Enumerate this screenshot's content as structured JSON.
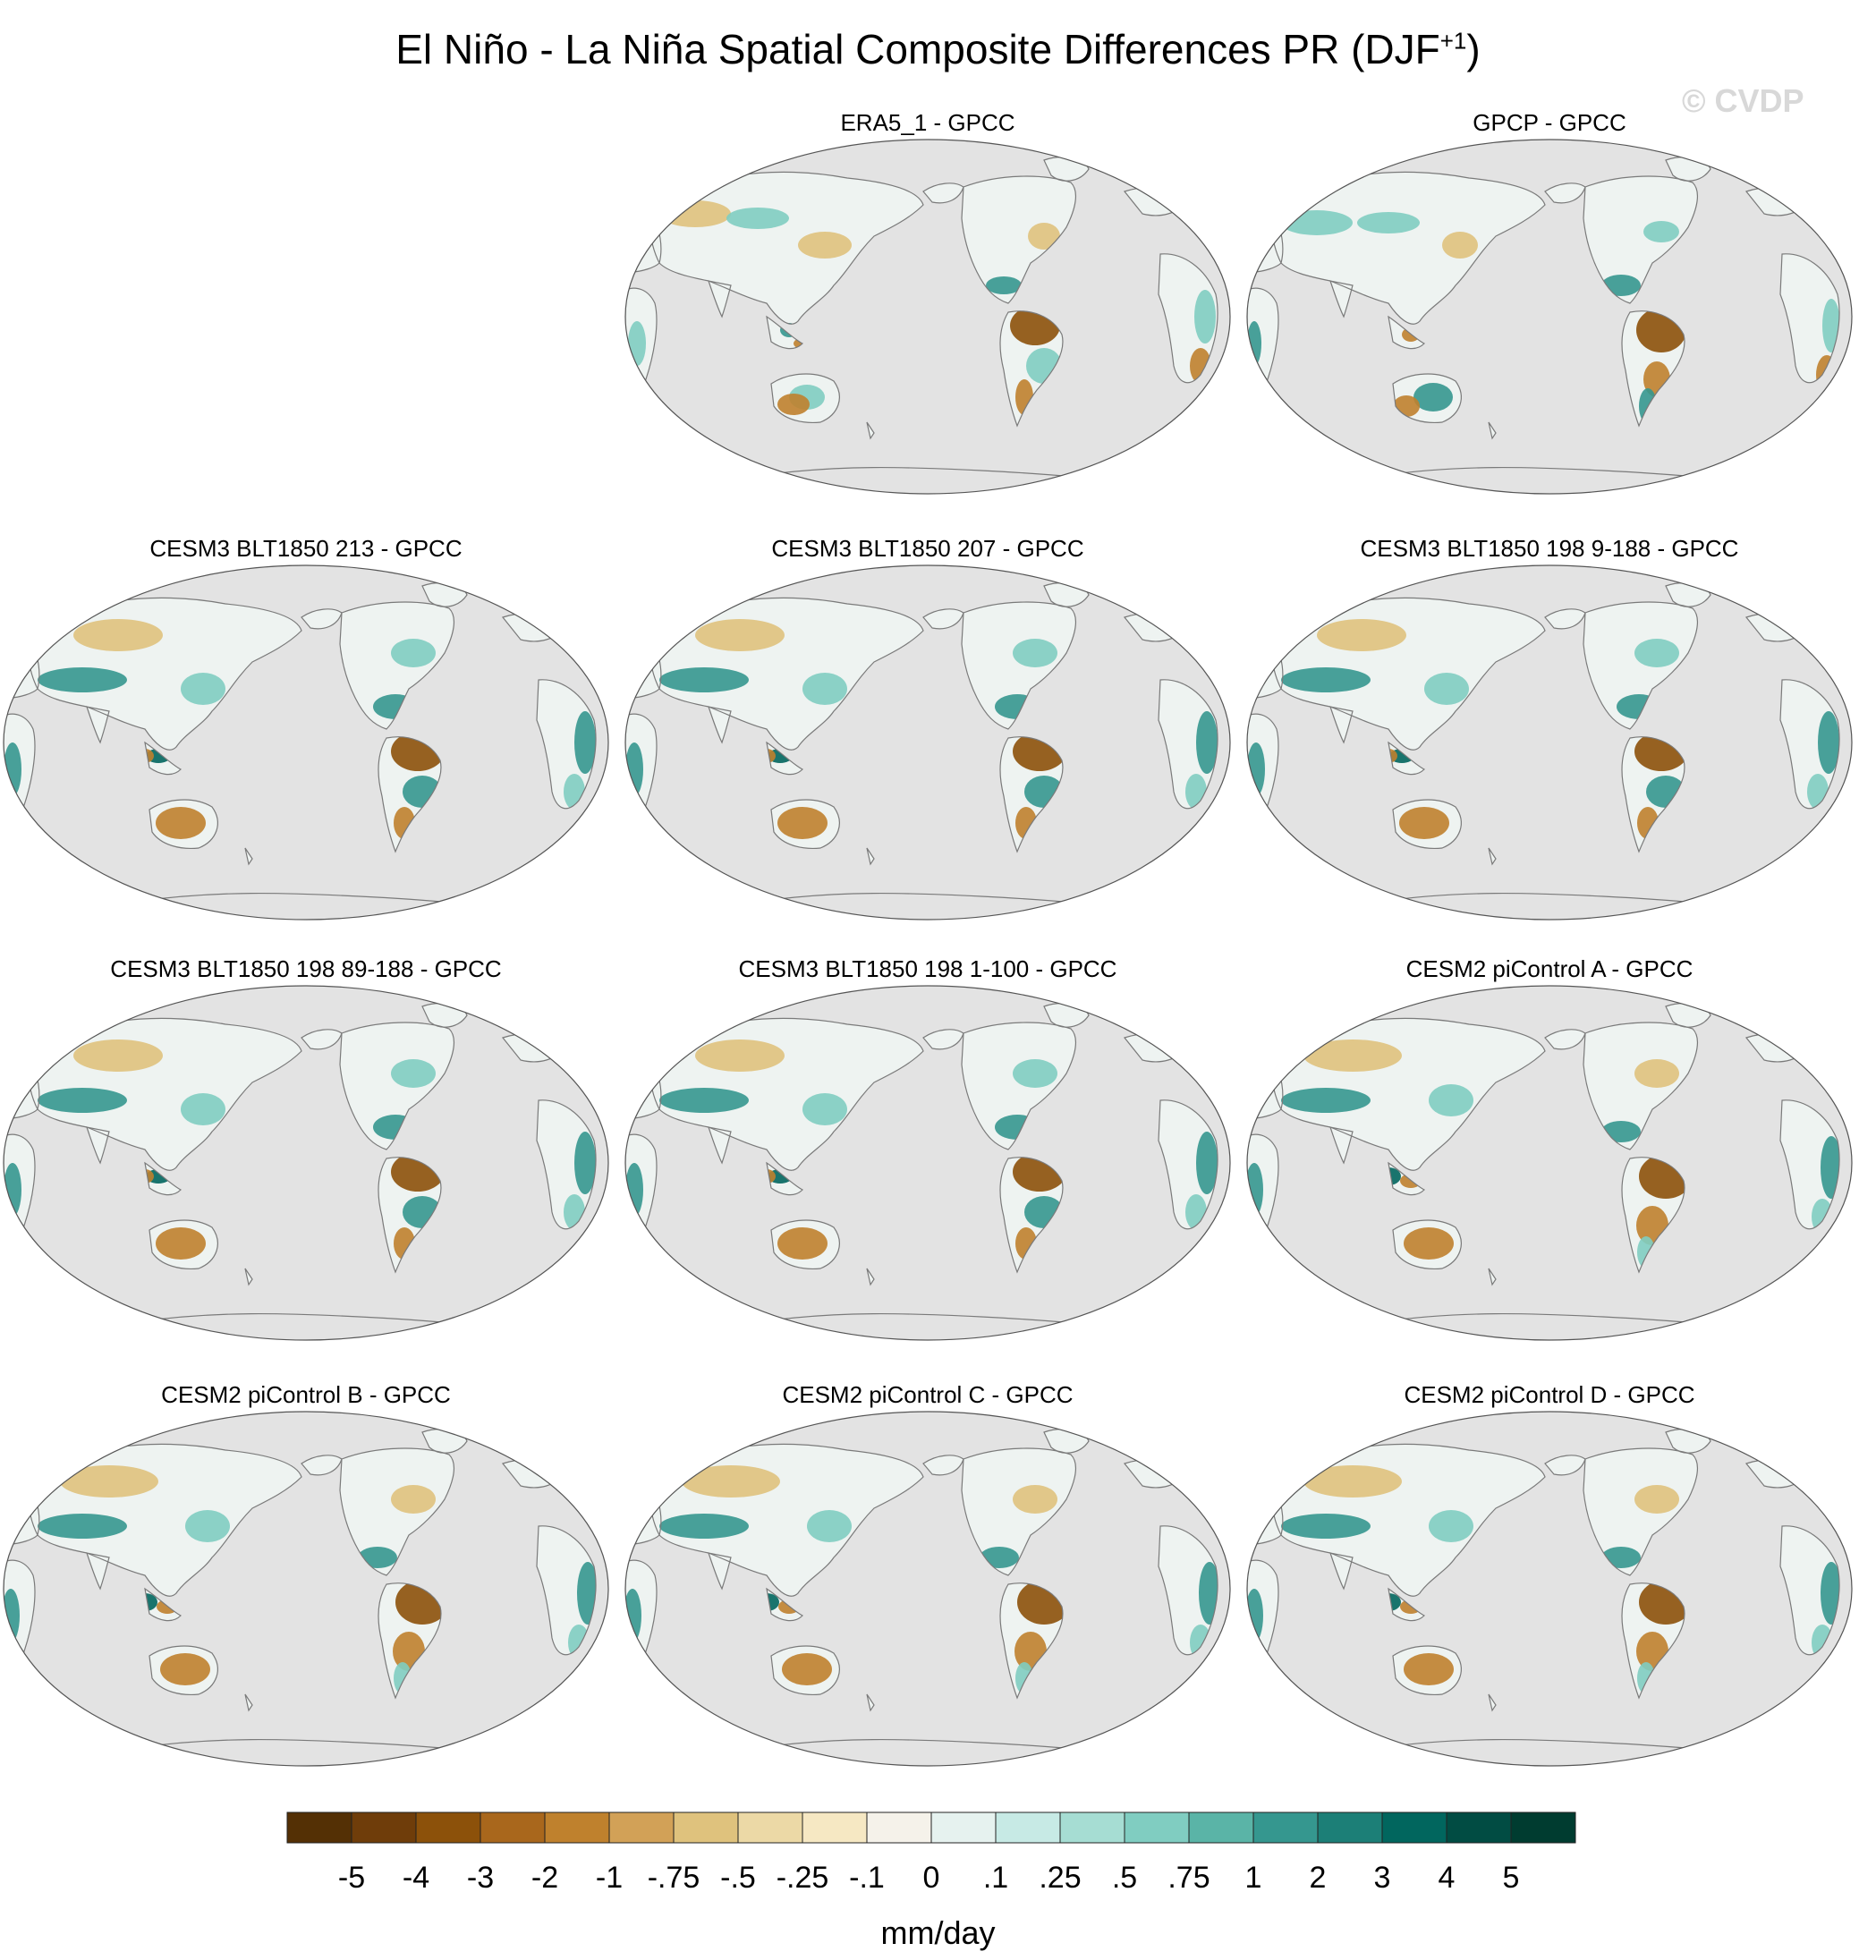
{
  "figure": {
    "title": "El Niño - La Niña Spatial Composite Differences PR (DJF",
    "title_sup": "+1",
    "title_close": ")",
    "watermark": "© CVDP"
  },
  "panels": [
    {
      "title": "ERA5_1 - GPCC",
      "pattern": "obs1"
    },
    {
      "title": "GPCP - GPCC",
      "pattern": "obs2"
    },
    {
      "title": "CESM3 BLT1850 213 - GPCC",
      "pattern": "model"
    },
    {
      "title": "CESM3 BLT1850 207 - GPCC",
      "pattern": "model"
    },
    {
      "title": "CESM3 BLT1850 198 9-188 - GPCC",
      "pattern": "model"
    },
    {
      "title": "CESM3 BLT1850 198 89-188 - GPCC",
      "pattern": "model"
    },
    {
      "title": "CESM3 BLT1850 198 1-100 - GPCC",
      "pattern": "model"
    },
    {
      "title": "CESM2 piControl A - GPCC",
      "pattern": "model2"
    },
    {
      "title": "CESM2 piControl B - GPCC",
      "pattern": "model2"
    },
    {
      "title": "CESM2 piControl C - GPCC",
      "pattern": "model2"
    },
    {
      "title": "CESM2 piControl D - GPCC",
      "pattern": "model2"
    }
  ],
  "colorbar": {
    "labels": [
      "-5",
      "-4",
      "-3",
      "-2",
      "-1",
      "-.75",
      "-.5",
      "-.25",
      "-.1",
      "0",
      ".1",
      ".25",
      ".5",
      ".75",
      "1",
      "2",
      "3",
      "4",
      "5"
    ],
    "colors": [
      "#543005",
      "#6f3d0a",
      "#8c510a",
      "#a9671c",
      "#bf812d",
      "#d2a157",
      "#dfc27d",
      "#ecd9a6",
      "#f6e8c3",
      "#f5f2ea",
      "#e6f2ef",
      "#c7eae5",
      "#a6ddd3",
      "#80cdc1",
      "#5ab4a7",
      "#35978f",
      "#1c7f77",
      "#01665e",
      "#014c43",
      "#003c30"
    ],
    "unit": "mm/day"
  },
  "colors": {
    "ocean": "#e3e3e3",
    "land": "#eef3f1",
    "coastline": "#7a7a7a",
    "dry_strong": "#8c510a",
    "dry": "#bf812d",
    "dry_light": "#dfc27d",
    "wet": "#80cdc1",
    "wet_strong": "#35978f",
    "wet_dark": "#01665e"
  }
}
